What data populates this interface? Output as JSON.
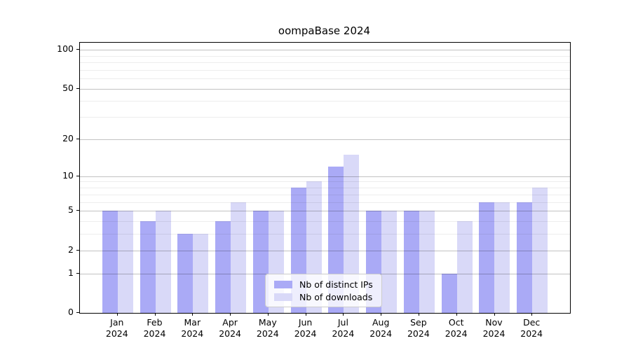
{
  "title": "oompaBase 2024",
  "chart_data": {
    "type": "bar",
    "title": "oompaBase 2024",
    "categories": [
      "Jan",
      "Feb",
      "Mar",
      "Apr",
      "May",
      "Jun",
      "Jul",
      "Aug",
      "Sep",
      "Oct",
      "Nov",
      "Dec"
    ],
    "category_year": "2024",
    "series": [
      {
        "name": "Nb of distinct IPs",
        "color": "#aaaaf6",
        "values": [
          5,
          4,
          3,
          4,
          5,
          8,
          12,
          5,
          5,
          1,
          6,
          6
        ]
      },
      {
        "name": "Nb of downloads",
        "color": "#d9d9f8",
        "values": [
          5,
          5,
          3,
          6,
          5,
          9,
          15,
          5,
          5,
          4,
          6,
          8
        ]
      }
    ],
    "xlabel": "",
    "ylabel": "",
    "yscale": "log1p",
    "ylim": [
      0,
      100
    ],
    "yticks": [
      0,
      1,
      2,
      5,
      10,
      20,
      50,
      100
    ],
    "yticks_minor": [
      3,
      4,
      6,
      7,
      8,
      9,
      30,
      40,
      60,
      70,
      80,
      90
    ],
    "grid": "on",
    "grid_above_bars": true,
    "legend_position": "lower center"
  },
  "colors": {
    "series_1": "#aaaaf6",
    "series_2": "#d9d9f8",
    "grid_major": "#c2c2c2",
    "grid_minor": "#ededed",
    "spine": "#000000",
    "background": "#ffffff",
    "legend_border": "#cccccc"
  }
}
